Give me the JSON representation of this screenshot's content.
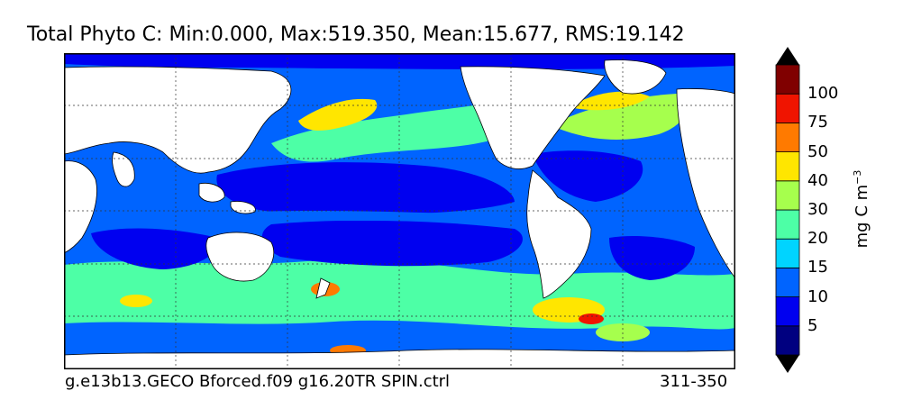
{
  "title": "Total Phyto C: Min:0.000, Max:519.350, Mean:15.677, RMS:19.142",
  "footer": {
    "case_name": "g.e13b13.GECO Bforced.f09 g16.20TR SPIN.ctrl",
    "years": "311-350"
  },
  "colorbar": {
    "units_text": "mg C m",
    "units_exponent": "−3",
    "levels": [
      "5",
      "10",
      "15",
      "20",
      "30",
      "40",
      "50",
      "75",
      "100"
    ],
    "colors": [
      "#000080",
      "#0000f0",
      "#0064ff",
      "#00d4ff",
      "#4dffa6",
      "#a6ff4d",
      "#ffe600",
      "#ff7a00",
      "#f01400",
      "#800000"
    ],
    "extend": "both"
  },
  "map": {
    "projection": "global cylindrical, Pacific-centered",
    "land_color": "#ffffff",
    "ocean_colors": {
      "oligotrophic_gyre": "#0000f0",
      "moderate": "#0064ff",
      "southern_ocean": "#4dffa6",
      "high_latitude": "#a6ff4d",
      "bloom": "#ffe600",
      "peak": "#f01400"
    },
    "gridlines": "dashed"
  }
}
